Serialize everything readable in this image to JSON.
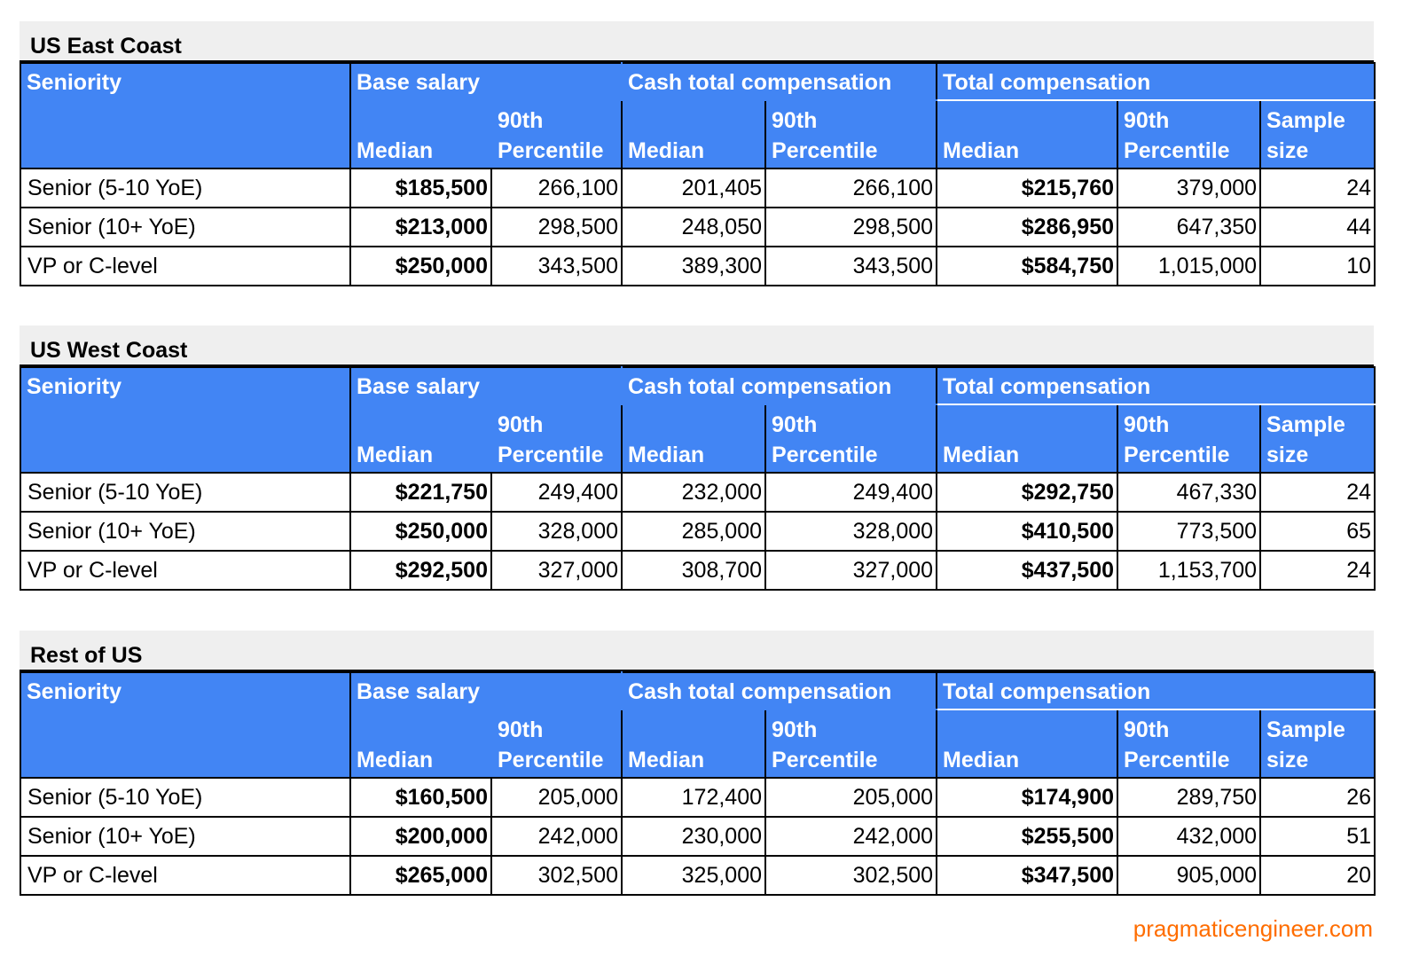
{
  "headers": {
    "seniority": "Seniority",
    "base_salary": "Base salary",
    "cash_total": "Cash total compensation",
    "total_comp": "Total compensation",
    "median": "Median",
    "p90_line1": "90th",
    "p90_line2": "Percentile",
    "sample_line1": "Sample",
    "sample_line2": "size"
  },
  "regions": [
    {
      "title": "US East Coast",
      "rows": [
        {
          "seniority": "Senior (5-10 YoE)",
          "base_median": "$185,500",
          "base_p90": "266,100",
          "cash_median": "201,405",
          "cash_p90": "266,100",
          "tc_median": "$215,760",
          "tc_p90": "379,000",
          "sample": "24"
        },
        {
          "seniority": "Senior (10+ YoE)",
          "base_median": "$213,000",
          "base_p90": "298,500",
          "cash_median": "248,050",
          "cash_p90": "298,500",
          "tc_median": "$286,950",
          "tc_p90": "647,350",
          "sample": "44"
        },
        {
          "seniority": "VP or C-level",
          "base_median": "$250,000",
          "base_p90": "343,500",
          "cash_median": "389,300",
          "cash_p90": "343,500",
          "tc_median": "$584,750",
          "tc_p90": "1,015,000",
          "sample": "10"
        }
      ]
    },
    {
      "title": "US West Coast",
      "rows": [
        {
          "seniority": "Senior (5-10 YoE)",
          "base_median": "$221,750",
          "base_p90": "249,400",
          "cash_median": "232,000",
          "cash_p90": "249,400",
          "tc_median": "$292,750",
          "tc_p90": "467,330",
          "sample": "24"
        },
        {
          "seniority": "Senior (10+ YoE)",
          "base_median": "$250,000",
          "base_p90": "328,000",
          "cash_median": "285,000",
          "cash_p90": "328,000",
          "tc_median": "$410,500",
          "tc_p90": "773,500",
          "sample": "65"
        },
        {
          "seniority": "VP or C-level",
          "base_median": "$292,500",
          "base_p90": "327,000",
          "cash_median": "308,700",
          "cash_p90": "327,000",
          "tc_median": "$437,500",
          "tc_p90": "1,153,700",
          "sample": "24"
        }
      ]
    },
    {
      "title": "Rest of US",
      "rows": [
        {
          "seniority": "Senior (5-10 YoE)",
          "base_median": "$160,500",
          "base_p90": "205,000",
          "cash_median": "172,400",
          "cash_p90": "205,000",
          "tc_median": "$174,900",
          "tc_p90": "289,750",
          "sample": "26"
        },
        {
          "seniority": "Senior (10+ YoE)",
          "base_median": "$200,000",
          "base_p90": "242,000",
          "cash_median": "230,000",
          "cash_p90": "242,000",
          "tc_median": "$255,500",
          "tc_p90": "432,000",
          "sample": "51"
        },
        {
          "seniority": "VP or C-level",
          "base_median": "$265,000",
          "base_p90": "302,500",
          "cash_median": "325,000",
          "cash_p90": "302,500",
          "tc_median": "$347,500",
          "tc_p90": "905,000",
          "sample": "20"
        }
      ]
    }
  ],
  "watermark": "pragmaticengineer.com",
  "colors": {
    "header_bg": "#4285f4",
    "title_bg": "#efefef",
    "watermark": "#ff6d00"
  }
}
